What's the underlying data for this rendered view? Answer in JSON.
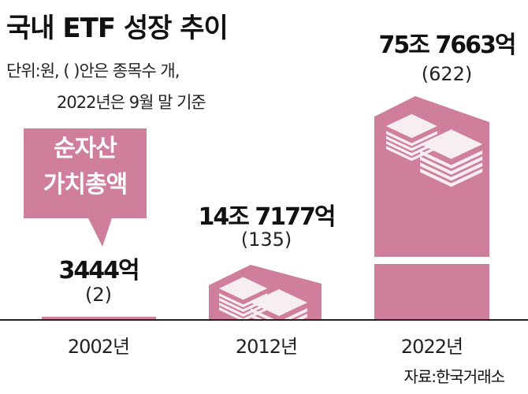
{
  "title": "국내 ETF 성장 추이",
  "subtitle_lines": [
    "단위:원, ( )안은 종목수 개,",
    "2022년은 9월 말 기준"
  ],
  "callout": {
    "line1": "순자산",
    "line2": "가치총액"
  },
  "source": "자료:한국거래소",
  "colors": {
    "bar": "#cf7e9b",
    "icon": "#f7eef2",
    "axis": "#222222"
  },
  "chart_data": {
    "type": "bar",
    "categories": [
      "2002년",
      "2012년",
      "2022년"
    ],
    "series": [
      {
        "name": "순자산 가치총액",
        "values": [
          3444,
          147177,
          757663
        ],
        "unit": "억원"
      }
    ],
    "counts": [
      2,
      135,
      622
    ],
    "value_labels": [
      "3444억",
      "14조 7177억",
      "75조 7663억"
    ],
    "count_labels": [
      "(2)",
      "(135)",
      "(622)"
    ],
    "broken_axis": true,
    "grid": false
  }
}
